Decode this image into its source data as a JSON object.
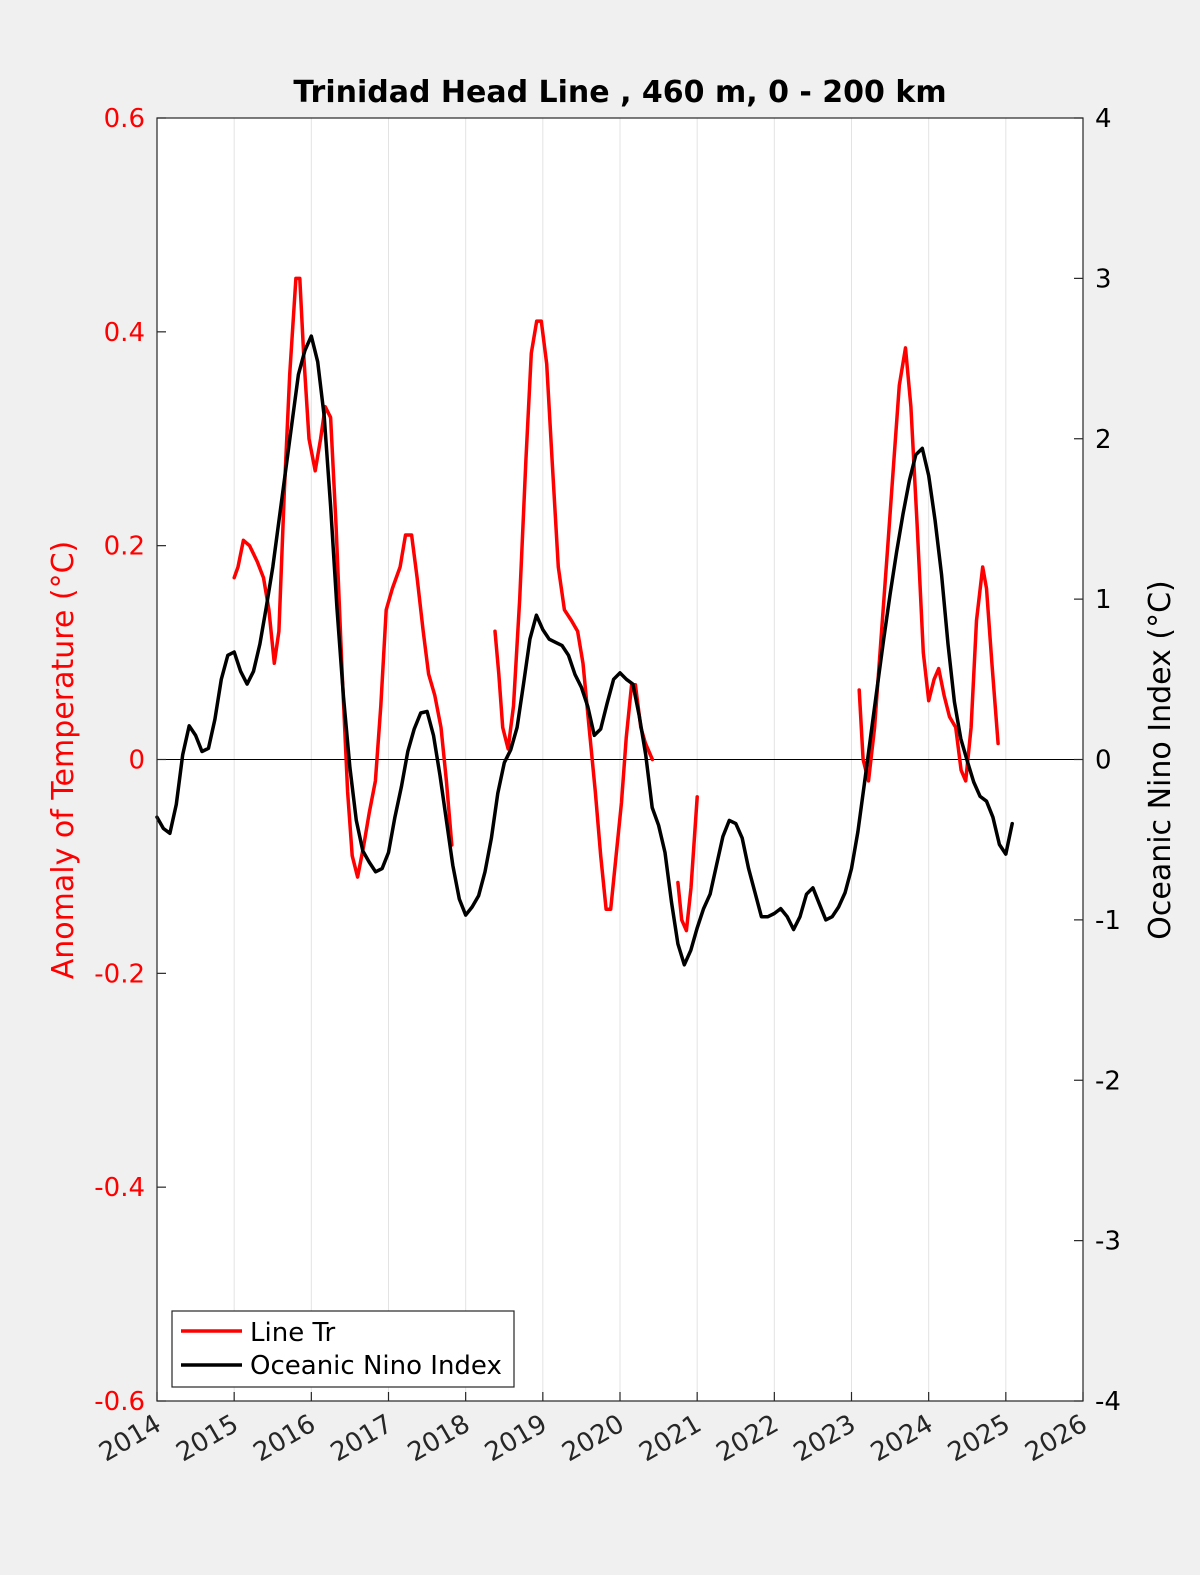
{
  "chart_data": {
    "type": "line",
    "title": "Trinidad Head Line , 460 m, 0 - 200 km",
    "xlim": [
      2014,
      2026
    ],
    "x_ticks": [
      "2014",
      "2015",
      "2016",
      "2017",
      "2018",
      "2019",
      "2020",
      "2021",
      "2022",
      "2023",
      "2024",
      "2025",
      "2026"
    ],
    "left_axis": {
      "label": "Anomaly of Temperature (°C)",
      "ylim": [
        -0.6,
        0.6
      ],
      "ticks": [
        "-0.6",
        "-0.4",
        "-0.2",
        "0",
        "0.2",
        "0.4",
        "0.6"
      ],
      "color": "#ff0000"
    },
    "right_axis": {
      "label": "Oceanic Nino Index (°C)",
      "ylim": [
        -4,
        4
      ],
      "ticks": [
        "-4",
        "-3",
        "-2",
        "-1",
        "0",
        "1",
        "2",
        "3",
        "4"
      ],
      "color": "#000000"
    },
    "grid": "vertical",
    "legend_position": "bottom-left",
    "series": [
      {
        "name": "Line Tr",
        "axis": "left",
        "color": "#ff0000",
        "segments": [
          [
            [
              2015.0,
              0.17
            ],
            [
              2015.05,
              0.18
            ],
            [
              2015.12,
              0.205
            ],
            [
              2015.2,
              0.2
            ],
            [
              2015.3,
              0.185
            ],
            [
              2015.38,
              0.17
            ],
            [
              2015.45,
              0.14
            ],
            [
              2015.52,
              0.09
            ],
            [
              2015.58,
              0.12
            ],
            [
              2015.65,
              0.25
            ],
            [
              2015.72,
              0.36
            ],
            [
              2015.8,
              0.45
            ],
            [
              2015.85,
              0.45
            ],
            [
              2015.9,
              0.38
            ],
            [
              2015.97,
              0.3
            ],
            [
              2016.05,
              0.27
            ],
            [
              2016.12,
              0.3
            ],
            [
              2016.18,
              0.33
            ],
            [
              2016.25,
              0.32
            ],
            [
              2016.32,
              0.22
            ],
            [
              2016.4,
              0.08
            ],
            [
              2016.47,
              -0.03
            ],
            [
              2016.53,
              -0.09
            ],
            [
              2016.6,
              -0.11
            ],
            [
              2016.68,
              -0.08
            ],
            [
              2016.75,
              -0.05
            ],
            [
              2016.83,
              -0.02
            ],
            [
              2016.9,
              0.05
            ],
            [
              2016.97,
              0.14
            ],
            [
              2017.05,
              0.16
            ],
            [
              2017.15,
              0.18
            ],
            [
              2017.22,
              0.21
            ],
            [
              2017.3,
              0.21
            ],
            [
              2017.37,
              0.17
            ],
            [
              2017.45,
              0.12
            ],
            [
              2017.52,
              0.08
            ],
            [
              2017.6,
              0.06
            ],
            [
              2017.68,
              0.03
            ],
            [
              2017.75,
              -0.02
            ],
            [
              2017.82,
              -0.08
            ]
          ],
          [
            [
              2018.38,
              0.12
            ],
            [
              2018.43,
              0.08
            ],
            [
              2018.48,
              0.03
            ],
            [
              2018.55,
              0.01
            ],
            [
              2018.62,
              0.05
            ],
            [
              2018.7,
              0.15
            ],
            [
              2018.78,
              0.28
            ],
            [
              2018.85,
              0.38
            ],
            [
              2018.92,
              0.41
            ],
            [
              2018.98,
              0.41
            ],
            [
              2019.05,
              0.37
            ],
            [
              2019.12,
              0.28
            ],
            [
              2019.2,
              0.18
            ],
            [
              2019.28,
              0.14
            ],
            [
              2019.37,
              0.13
            ],
            [
              2019.45,
              0.12
            ],
            [
              2019.52,
              0.09
            ],
            [
              2019.6,
              0.03
            ],
            [
              2019.68,
              -0.03
            ],
            [
              2019.75,
              -0.09
            ],
            [
              2019.82,
              -0.14
            ],
            [
              2019.88,
              -0.14
            ],
            [
              2019.95,
              -0.09
            ],
            [
              2020.02,
              -0.04
            ],
            [
              2020.08,
              0.02
            ],
            [
              2020.15,
              0.07
            ],
            [
              2020.2,
              0.07
            ],
            [
              2020.27,
              0.03
            ],
            [
              2020.33,
              0.015
            ],
            [
              2020.42,
              0.0
            ]
          ],
          [
            [
              2020.75,
              -0.115
            ],
            [
              2020.8,
              -0.15
            ],
            [
              2020.86,
              -0.16
            ],
            [
              2020.92,
              -0.12
            ],
            [
              2021.0,
              -0.035
            ]
          ],
          [
            [
              2023.1,
              0.065
            ],
            [
              2023.15,
              0.0
            ],
            [
              2023.22,
              -0.02
            ],
            [
              2023.3,
              0.03
            ],
            [
              2023.38,
              0.11
            ],
            [
              2023.47,
              0.2
            ],
            [
              2023.55,
              0.28
            ],
            [
              2023.62,
              0.35
            ],
            [
              2023.7,
              0.385
            ],
            [
              2023.77,
              0.33
            ],
            [
              2023.85,
              0.22
            ],
            [
              2023.93,
              0.1
            ],
            [
              2024.0,
              0.055
            ],
            [
              2024.07,
              0.075
            ],
            [
              2024.13,
              0.085
            ],
            [
              2024.2,
              0.06
            ],
            [
              2024.27,
              0.04
            ],
            [
              2024.35,
              0.03
            ],
            [
              2024.42,
              -0.01
            ],
            [
              2024.48,
              -0.02
            ],
            [
              2024.55,
              0.03
            ],
            [
              2024.62,
              0.13
            ],
            [
              2024.7,
              0.18
            ],
            [
              2024.75,
              0.16
            ],
            [
              2024.82,
              0.09
            ],
            [
              2024.9,
              0.015
            ]
          ]
        ]
      },
      {
        "name": "Oceanic Nino Index",
        "axis": "right",
        "color": "#000000",
        "segments": [
          [
            [
              2014.0,
              -0.36
            ],
            [
              2014.083,
              -0.43
            ],
            [
              2014.167,
              -0.46
            ],
            [
              2014.25,
              -0.28
            ],
            [
              2014.333,
              0.03
            ],
            [
              2014.417,
              0.21
            ],
            [
              2014.5,
              0.15
            ],
            [
              2014.583,
              0.05
            ],
            [
              2014.667,
              0.07
            ],
            [
              2014.75,
              0.25
            ],
            [
              2014.833,
              0.5
            ],
            [
              2014.917,
              0.65
            ],
            [
              2015.0,
              0.67
            ],
            [
              2015.083,
              0.55
            ],
            [
              2015.167,
              0.47
            ],
            [
              2015.25,
              0.55
            ],
            [
              2015.333,
              0.72
            ],
            [
              2015.417,
              0.95
            ],
            [
              2015.5,
              1.2
            ],
            [
              2015.583,
              1.5
            ],
            [
              2015.667,
              1.8
            ],
            [
              2015.75,
              2.1
            ],
            [
              2015.833,
              2.4
            ],
            [
              2015.917,
              2.55
            ],
            [
              2016.0,
              2.64
            ],
            [
              2016.083,
              2.48
            ],
            [
              2016.167,
              2.14
            ],
            [
              2016.25,
              1.58
            ],
            [
              2016.333,
              0.94
            ],
            [
              2016.417,
              0.39
            ],
            [
              2016.5,
              -0.05
            ],
            [
              2016.583,
              -0.38
            ],
            [
              2016.667,
              -0.57
            ],
            [
              2016.75,
              -0.64
            ],
            [
              2016.833,
              -0.7
            ],
            [
              2016.917,
              -0.68
            ],
            [
              2017.0,
              -0.58
            ],
            [
              2017.083,
              -0.36
            ],
            [
              2017.167,
              -0.17
            ],
            [
              2017.25,
              0.05
            ],
            [
              2017.333,
              0.19
            ],
            [
              2017.417,
              0.29
            ],
            [
              2017.5,
              0.3
            ],
            [
              2017.583,
              0.15
            ],
            [
              2017.667,
              -0.1
            ],
            [
              2017.75,
              -0.38
            ],
            [
              2017.833,
              -0.66
            ],
            [
              2017.917,
              -0.87
            ],
            [
              2018.0,
              -0.97
            ],
            [
              2018.083,
              -0.92
            ],
            [
              2018.167,
              -0.85
            ],
            [
              2018.25,
              -0.7
            ],
            [
              2018.333,
              -0.49
            ],
            [
              2018.417,
              -0.21
            ],
            [
              2018.5,
              -0.02
            ],
            [
              2018.583,
              0.06
            ],
            [
              2018.667,
              0.2
            ],
            [
              2018.75,
              0.47
            ],
            [
              2018.833,
              0.75
            ],
            [
              2018.917,
              0.9
            ],
            [
              2019.0,
              0.81
            ],
            [
              2019.083,
              0.75
            ],
            [
              2019.167,
              0.73
            ],
            [
              2019.25,
              0.71
            ],
            [
              2019.333,
              0.65
            ],
            [
              2019.417,
              0.53
            ],
            [
              2019.5,
              0.45
            ],
            [
              2019.583,
              0.33
            ],
            [
              2019.667,
              0.15
            ],
            [
              2019.75,
              0.19
            ],
            [
              2019.833,
              0.35
            ],
            [
              2019.917,
              0.5
            ],
            [
              2020.0,
              0.54
            ],
            [
              2020.083,
              0.5
            ],
            [
              2020.167,
              0.47
            ],
            [
              2020.25,
              0.27
            ],
            [
              2020.333,
              0.03
            ],
            [
              2020.417,
              -0.3
            ],
            [
              2020.5,
              -0.41
            ],
            [
              2020.583,
              -0.58
            ],
            [
              2020.667,
              -0.89
            ],
            [
              2020.75,
              -1.15
            ],
            [
              2020.833,
              -1.28
            ],
            [
              2020.917,
              -1.19
            ],
            [
              2021.0,
              -1.05
            ],
            [
              2021.083,
              -0.93
            ],
            [
              2021.167,
              -0.84
            ],
            [
              2021.25,
              -0.66
            ],
            [
              2021.333,
              -0.48
            ],
            [
              2021.417,
              -0.38
            ],
            [
              2021.5,
              -0.4
            ],
            [
              2021.583,
              -0.49
            ],
            [
              2021.667,
              -0.68
            ],
            [
              2021.75,
              -0.83
            ],
            [
              2021.833,
              -0.98
            ],
            [
              2021.917,
              -0.98
            ],
            [
              2022.0,
              -0.96
            ],
            [
              2022.083,
              -0.93
            ],
            [
              2022.167,
              -0.98
            ],
            [
              2022.25,
              -1.06
            ],
            [
              2022.333,
              -0.98
            ],
            [
              2022.417,
              -0.84
            ],
            [
              2022.5,
              -0.8
            ],
            [
              2022.583,
              -0.9
            ],
            [
              2022.667,
              -1.0
            ],
            [
              2022.75,
              -0.98
            ],
            [
              2022.833,
              -0.92
            ],
            [
              2022.917,
              -0.83
            ],
            [
              2023.0,
              -0.68
            ],
            [
              2023.083,
              -0.45
            ],
            [
              2023.167,
              -0.15
            ],
            [
              2023.25,
              0.15
            ],
            [
              2023.333,
              0.45
            ],
            [
              2023.417,
              0.75
            ],
            [
              2023.5,
              1.03
            ],
            [
              2023.583,
              1.29
            ],
            [
              2023.667,
              1.53
            ],
            [
              2023.75,
              1.74
            ],
            [
              2023.833,
              1.9
            ],
            [
              2023.917,
              1.94
            ],
            [
              2024.0,
              1.77
            ],
            [
              2024.083,
              1.49
            ],
            [
              2024.167,
              1.15
            ],
            [
              2024.25,
              0.72
            ],
            [
              2024.333,
              0.36
            ],
            [
              2024.417,
              0.13
            ],
            [
              2024.5,
              -0.01
            ],
            [
              2024.583,
              -0.14
            ],
            [
              2024.667,
              -0.23
            ],
            [
              2024.75,
              -0.26
            ],
            [
              2024.833,
              -0.36
            ],
            [
              2024.917,
              -0.53
            ],
            [
              2025.0,
              -0.59
            ],
            [
              2025.083,
              -0.4
            ]
          ]
        ]
      }
    ]
  }
}
